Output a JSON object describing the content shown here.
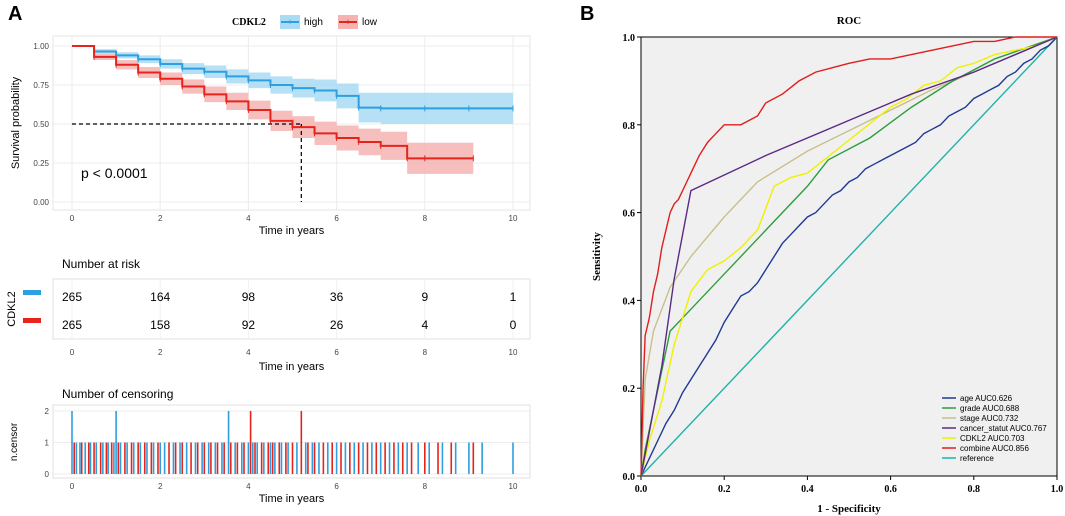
{
  "panel_a_letter": "A",
  "panel_b_letter": "B",
  "colors": {
    "high": "#2E9FDF",
    "low": "#E7241B",
    "high_band": "#A9DBF5",
    "low_band": "#F4B3B0",
    "grid_bg": "#FFFFFF"
  },
  "chart_data": [
    {
      "type": "line",
      "subtype": "kaplan-meier",
      "legend_title": "CDKL2",
      "legend_position": "top",
      "xlabel": "Time in years",
      "ylabel": "Survival probability",
      "xlim": [
        0,
        10
      ],
      "ylim": [
        0,
        1
      ],
      "xticks": [
        "0",
        "2",
        "4",
        "6",
        "8",
        "10"
      ],
      "yticks": [
        "0.00",
        "0.25",
        "0.50",
        "0.75",
        "1.00"
      ],
      "pvalue": "p < 0.0001",
      "median_line": {
        "x": 5.2,
        "y": 0.5
      },
      "series": [
        {
          "name": "high",
          "x": [
            0,
            0.5,
            1,
            1.5,
            2,
            2.5,
            3,
            3.5,
            4,
            4.5,
            5,
            5.5,
            6,
            6.5,
            7,
            8,
            9,
            10
          ],
          "y": [
            1.0,
            0.965,
            0.94,
            0.915,
            0.885,
            0.855,
            0.835,
            0.805,
            0.78,
            0.75,
            0.73,
            0.715,
            0.68,
            0.605,
            0.6,
            0.6,
            0.6,
            0.6
          ],
          "lower": [
            1.0,
            0.95,
            0.92,
            0.89,
            0.855,
            0.82,
            0.795,
            0.76,
            0.73,
            0.695,
            0.67,
            0.645,
            0.6,
            0.51,
            0.5,
            0.5,
            0.5,
            0.5
          ],
          "upper": [
            1.0,
            0.98,
            0.96,
            0.94,
            0.915,
            0.89,
            0.875,
            0.85,
            0.83,
            0.805,
            0.79,
            0.785,
            0.76,
            0.7,
            0.7,
            0.7,
            0.7,
            0.7
          ]
        },
        {
          "name": "low",
          "x": [
            0,
            0.5,
            1,
            1.5,
            2,
            2.5,
            3,
            3.5,
            4,
            4.5,
            5,
            5.5,
            6,
            6.5,
            7,
            7.6,
            8,
            9.1
          ],
          "y": [
            1.0,
            0.93,
            0.88,
            0.83,
            0.79,
            0.74,
            0.69,
            0.645,
            0.59,
            0.52,
            0.48,
            0.44,
            0.41,
            0.385,
            0.36,
            0.28,
            0.28,
            0.28
          ],
          "lower": [
            1.0,
            0.91,
            0.85,
            0.795,
            0.75,
            0.695,
            0.64,
            0.59,
            0.53,
            0.455,
            0.41,
            0.365,
            0.33,
            0.3,
            0.27,
            0.18,
            0.18,
            0.18
          ],
          "upper": [
            1.0,
            0.95,
            0.91,
            0.865,
            0.83,
            0.785,
            0.74,
            0.7,
            0.65,
            0.585,
            0.55,
            0.515,
            0.49,
            0.47,
            0.45,
            0.38,
            0.38,
            0.38
          ]
        }
      ]
    },
    {
      "type": "table",
      "title": "Number at risk",
      "row_label": "CDKL2",
      "xlabel": "Time in years",
      "times": [
        "0",
        "2",
        "4",
        "6",
        "8",
        "10"
      ],
      "rows": [
        {
          "name": "high",
          "values": [
            "265",
            "164",
            "98",
            "36",
            "9",
            "1"
          ]
        },
        {
          "name": "low",
          "values": [
            "265",
            "158",
            "92",
            "26",
            "4",
            "0"
          ]
        }
      ]
    },
    {
      "type": "bar",
      "title": "Number of censoring",
      "ylabel": "n.censor",
      "xlabel": "Time in years",
      "xticks": [
        "0",
        "2",
        "4",
        "6",
        "8",
        "10"
      ],
      "yticks": [
        "0",
        "1",
        "2"
      ],
      "xlim": [
        0,
        10
      ],
      "ylim": [
        0,
        2
      ],
      "series": [
        {
          "name": "high",
          "times": [
            0.0,
            0.1,
            0.18,
            0.3,
            0.42,
            0.55,
            0.7,
            0.82,
            0.95,
            1.0,
            1.1,
            1.25,
            1.4,
            1.55,
            1.7,
            1.85,
            2.0,
            2.1,
            2.3,
            2.45,
            2.6,
            2.8,
            2.95,
            3.1,
            3.25,
            3.4,
            3.55,
            3.7,
            3.85,
            4.0,
            4.1,
            4.2,
            4.35,
            4.5,
            4.6,
            4.75,
            4.9,
            5.1,
            5.3,
            5.45,
            5.6,
            5.8,
            6.0,
            6.2,
            6.4,
            6.6,
            6.8,
            7.0,
            7.2,
            7.4,
            7.6,
            7.85,
            8.1,
            8.4,
            8.7,
            9.0,
            9.3,
            10.0
          ],
          "counts": [
            2,
            1,
            1,
            1,
            1,
            1,
            1,
            1,
            1,
            2,
            1,
            1,
            1,
            1,
            1,
            1,
            1,
            1,
            1,
            1,
            1,
            1,
            1,
            1,
            1,
            1,
            2,
            1,
            1,
            1,
            1,
            1,
            1,
            1,
            1,
            1,
            1,
            1,
            1,
            1,
            1,
            1,
            1,
            1,
            1,
            1,
            1,
            1,
            1,
            1,
            1,
            1,
            1,
            1,
            1,
            1,
            1,
            1
          ]
        },
        {
          "name": "low",
          "times": [
            0.05,
            0.22,
            0.38,
            0.5,
            0.65,
            0.78,
            0.9,
            1.05,
            1.2,
            1.35,
            1.5,
            1.65,
            1.8,
            1.95,
            2.2,
            2.35,
            2.5,
            2.7,
            2.85,
            3.0,
            3.15,
            3.3,
            3.45,
            3.6,
            3.75,
            3.9,
            4.05,
            4.15,
            4.3,
            4.45,
            4.55,
            4.7,
            4.85,
            5.0,
            5.2,
            5.35,
            5.5,
            5.7,
            5.9,
            6.1,
            6.3,
            6.5,
            6.7,
            6.9,
            7.1,
            7.3,
            7.5,
            7.7,
            8.0,
            8.3,
            8.6,
            9.1
          ],
          "counts": [
            1,
            1,
            1,
            1,
            1,
            1,
            1,
            1,
            1,
            1,
            1,
            1,
            1,
            1,
            1,
            1,
            1,
            1,
            1,
            1,
            1,
            1,
            1,
            1,
            1,
            1,
            2,
            1,
            1,
            1,
            1,
            1,
            1,
            1,
            2,
            1,
            1,
            1,
            1,
            1,
            1,
            1,
            1,
            1,
            1,
            1,
            1,
            1,
            1,
            1,
            1,
            1
          ]
        }
      ]
    },
    {
      "type": "line",
      "subtype": "roc",
      "title": "ROC",
      "xlabel": "1 - Specificity",
      "ylabel": "Sensitivity",
      "xlim": [
        0,
        1
      ],
      "ylim": [
        0,
        1
      ],
      "xticks": [
        "0.0",
        "0.2",
        "0.4",
        "0.6",
        "0.8",
        "1.0"
      ],
      "yticks": [
        "0.0",
        "0.2",
        "0.4",
        "0.6",
        "0.8",
        "1.0"
      ],
      "legend_position": "bottom-right",
      "series": [
        {
          "name": "age",
          "label": "age  AUC0.626",
          "color": "#1F3A93",
          "x": [
            0,
            0.02,
            0.04,
            0.06,
            0.08,
            0.1,
            0.12,
            0.14,
            0.16,
            0.18,
            0.2,
            0.22,
            0.24,
            0.26,
            0.28,
            0.3,
            0.32,
            0.34,
            0.36,
            0.38,
            0.4,
            0.42,
            0.44,
            0.46,
            0.48,
            0.5,
            0.52,
            0.54,
            0.56,
            0.58,
            0.6,
            0.62,
            0.64,
            0.66,
            0.68,
            0.7,
            0.72,
            0.74,
            0.76,
            0.78,
            0.8,
            0.82,
            0.84,
            0.86,
            0.88,
            0.9,
            0.92,
            0.94,
            0.96,
            0.98,
            1.0
          ],
          "y": [
            0,
            0.04,
            0.08,
            0.12,
            0.15,
            0.19,
            0.22,
            0.25,
            0.28,
            0.31,
            0.35,
            0.38,
            0.41,
            0.42,
            0.44,
            0.47,
            0.5,
            0.53,
            0.55,
            0.57,
            0.59,
            0.6,
            0.62,
            0.64,
            0.65,
            0.67,
            0.68,
            0.7,
            0.71,
            0.72,
            0.73,
            0.74,
            0.75,
            0.76,
            0.78,
            0.79,
            0.8,
            0.82,
            0.83,
            0.84,
            0.86,
            0.87,
            0.88,
            0.89,
            0.91,
            0.92,
            0.94,
            0.95,
            0.97,
            0.98,
            1.0
          ]
        },
        {
          "name": "grade",
          "label": "grade  AUC0.688",
          "color": "#2E9E3C",
          "x": [
            0,
            0.01,
            0.03,
            0.07,
            0.12,
            0.2,
            0.3,
            0.4,
            0.45,
            0.55,
            0.65,
            0.75,
            0.85,
            1.0
          ],
          "y": [
            0,
            0.06,
            0.15,
            0.33,
            0.38,
            0.46,
            0.56,
            0.66,
            0.72,
            0.77,
            0.84,
            0.9,
            0.95,
            1.0
          ]
        },
        {
          "name": "stage",
          "label": "stage  AUC0.732",
          "color": "#C9C08A",
          "x": [
            0,
            0.01,
            0.03,
            0.07,
            0.12,
            0.2,
            0.28,
            0.4,
            0.55,
            0.7,
            0.85,
            1.0
          ],
          "y": [
            0,
            0.22,
            0.33,
            0.43,
            0.5,
            0.59,
            0.67,
            0.74,
            0.81,
            0.88,
            0.94,
            1.0
          ]
        },
        {
          "name": "cancer_statut",
          "label": "cancer_statut  AUC0.767",
          "color": "#5B2A86",
          "x": [
            0,
            0.02,
            0.05,
            0.08,
            0.12,
            0.3,
            0.5,
            0.65,
            0.8,
            0.9,
            1.0
          ],
          "y": [
            0,
            0.1,
            0.25,
            0.45,
            0.65,
            0.73,
            0.81,
            0.87,
            0.92,
            0.96,
            1.0
          ]
        },
        {
          "name": "CDKL2",
          "label": "CDKL2  AUC0.703",
          "color": "#F0F000",
          "x": [
            0,
            0.02,
            0.05,
            0.08,
            0.12,
            0.16,
            0.2,
            0.24,
            0.28,
            0.32,
            0.36,
            0.4,
            0.44,
            0.48,
            0.52,
            0.56,
            0.6,
            0.64,
            0.68,
            0.72,
            0.76,
            0.8,
            0.85,
            0.9,
            0.95,
            1.0
          ],
          "y": [
            0,
            0.08,
            0.17,
            0.3,
            0.42,
            0.47,
            0.49,
            0.52,
            0.56,
            0.66,
            0.68,
            0.69,
            0.72,
            0.75,
            0.78,
            0.81,
            0.84,
            0.86,
            0.89,
            0.9,
            0.93,
            0.94,
            0.96,
            0.97,
            0.98,
            1.0
          ]
        },
        {
          "name": "combine",
          "label": "combine  AUC0.856",
          "color": "#E01E1E",
          "x": [
            0,
            0.005,
            0.01,
            0.02,
            0.03,
            0.04,
            0.05,
            0.06,
            0.07,
            0.08,
            0.09,
            0.1,
            0.11,
            0.12,
            0.14,
            0.16,
            0.18,
            0.2,
            0.22,
            0.24,
            0.26,
            0.28,
            0.3,
            0.34,
            0.38,
            0.42,
            0.46,
            0.5,
            0.55,
            0.6,
            0.65,
            0.7,
            0.75,
            0.8,
            0.85,
            0.9,
            0.95,
            1.0
          ],
          "y": [
            0,
            0.2,
            0.32,
            0.36,
            0.42,
            0.46,
            0.52,
            0.56,
            0.6,
            0.62,
            0.63,
            0.65,
            0.67,
            0.69,
            0.73,
            0.76,
            0.78,
            0.8,
            0.8,
            0.8,
            0.81,
            0.82,
            0.85,
            0.87,
            0.9,
            0.92,
            0.93,
            0.94,
            0.95,
            0.95,
            0.96,
            0.97,
            0.98,
            0.99,
            0.99,
            1.0,
            1.0,
            1.0
          ]
        },
        {
          "name": "reference",
          "label": "reference",
          "color": "#20B2AA",
          "x": [
            0,
            1
          ],
          "y": [
            0,
            1
          ]
        }
      ]
    }
  ]
}
